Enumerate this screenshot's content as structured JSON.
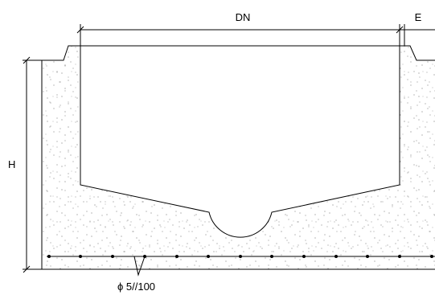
{
  "labels": {
    "dn": "DN",
    "e": "E",
    "h": "H",
    "rebar": "ϕ 5//100"
  },
  "colors": {
    "line": "#000000",
    "concrete_speckle": "#555555",
    "background": "#ffffff"
  }
}
